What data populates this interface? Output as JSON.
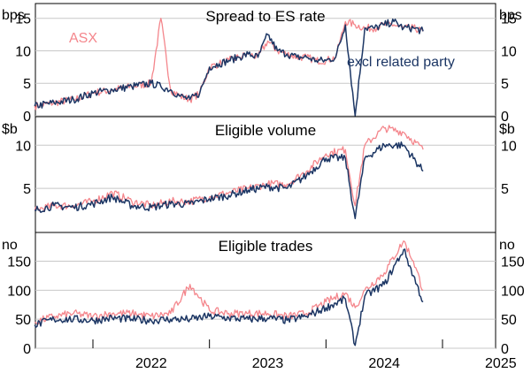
{
  "chart_data": [
    {
      "type": "line",
      "title": "Spread to ES rate",
      "unit_left": "bps",
      "unit_right": "bps",
      "ylim": [
        0,
        17
      ],
      "yticks": [
        0,
        5,
        10,
        15
      ],
      "grid": true,
      "series": [
        {
          "name": "ASX",
          "color": "#f4868c",
          "x": [
            "2021-07",
            "2021-09",
            "2021-11",
            "2022-01",
            "2022-03",
            "2022-05",
            "2022-07",
            "2022-08",
            "2022-09",
            "2022-10",
            "2022-11",
            "2022-12",
            "2023-01",
            "2023-02",
            "2023-03",
            "2023-04",
            "2023-05",
            "2023-06",
            "2023-07",
            "2023-08",
            "2023-09",
            "2023-10",
            "2023-11",
            "2023-12",
            "2024-01",
            "2024-02",
            "2024-03",
            "2024-04",
            "2024-05",
            "2024-06",
            "2024-07",
            "2024-08",
            "2024-09",
            "2024-10",
            "2024-11"
          ],
          "values": [
            1.5,
            2.0,
            2.5,
            3.5,
            4.0,
            4.5,
            5.0,
            15.0,
            4.0,
            3.0,
            2.5,
            3.5,
            7.5,
            8.0,
            8.5,
            9.0,
            9.5,
            9.0,
            11.5,
            10.0,
            9.5,
            9.0,
            9.0,
            8.5,
            8.5,
            9.0,
            14.5,
            14.0,
            13.5,
            13.5,
            14.0,
            14.0,
            13.5,
            13.5,
            13.0
          ]
        },
        {
          "name": "excl related party",
          "color": "#1c3664",
          "x": [
            "2021-07",
            "2021-09",
            "2021-11",
            "2022-01",
            "2022-03",
            "2022-05",
            "2022-07",
            "2022-08",
            "2022-09",
            "2022-10",
            "2022-11",
            "2022-12",
            "2023-01",
            "2023-02",
            "2023-03",
            "2023-04",
            "2023-05",
            "2023-06",
            "2023-07",
            "2023-08",
            "2023-09",
            "2023-10",
            "2023-11",
            "2023-12",
            "2024-01",
            "2024-02",
            "2024-03",
            "2024-04",
            "2024-05",
            "2024-06",
            "2024-07",
            "2024-08",
            "2024-09",
            "2024-10",
            "2024-11"
          ],
          "values": [
            1.5,
            2.0,
            2.5,
            3.5,
            4.0,
            4.5,
            5.0,
            4.5,
            4.0,
            3.0,
            2.5,
            3.5,
            7.5,
            8.0,
            8.5,
            9.0,
            9.5,
            9.0,
            12.5,
            10.0,
            9.5,
            9.0,
            9.0,
            8.5,
            8.5,
            9.0,
            14.0,
            0.0,
            13.5,
            13.5,
            14.0,
            14.5,
            13.5,
            13.5,
            13.0
          ]
        }
      ]
    },
    {
      "type": "line",
      "title": "Eligible volume",
      "unit_left": "$b",
      "unit_right": "$b",
      "ylim": [
        0,
        13
      ],
      "yticks": [
        5,
        10
      ],
      "grid": true,
      "series": [
        {
          "name": "ASX",
          "color": "#f4868c",
          "x": [
            "2021-07",
            "2021-09",
            "2021-11",
            "2022-01",
            "2022-03",
            "2022-05",
            "2022-07",
            "2022-09",
            "2022-11",
            "2023-01",
            "2023-03",
            "2023-05",
            "2023-07",
            "2023-09",
            "2023-11",
            "2024-01",
            "2024-03",
            "2024-04",
            "2024-05",
            "2024-07",
            "2024-09",
            "2024-11"
          ],
          "values": [
            2.5,
            3.0,
            3.0,
            3.5,
            4.5,
            3.5,
            3.0,
            3.5,
            3.5,
            4.0,
            4.5,
            5.0,
            5.5,
            5.5,
            7.0,
            9.0,
            9.5,
            3.0,
            10.0,
            12.0,
            11.5,
            9.5
          ]
        },
        {
          "name": "excl related party",
          "color": "#1c3664",
          "x": [
            "2021-07",
            "2021-09",
            "2021-11",
            "2022-01",
            "2022-03",
            "2022-05",
            "2022-07",
            "2022-09",
            "2022-11",
            "2023-01",
            "2023-03",
            "2023-05",
            "2023-07",
            "2023-09",
            "2023-11",
            "2024-01",
            "2024-03",
            "2024-04",
            "2024-05",
            "2024-07",
            "2024-09",
            "2024-11"
          ],
          "values": [
            2.5,
            3.0,
            2.8,
            3.2,
            4.0,
            3.0,
            2.8,
            3.2,
            3.2,
            3.8,
            4.2,
            4.8,
            5.2,
            5.0,
            6.5,
            8.5,
            8.5,
            1.5,
            8.5,
            10.0,
            10.0,
            7.0
          ]
        }
      ]
    },
    {
      "type": "line",
      "title": "Eligible trades",
      "unit_left": "no",
      "unit_right": "no",
      "ylim": [
        0,
        195
      ],
      "yticks": [
        0,
        50,
        100,
        150
      ],
      "grid": true,
      "series": [
        {
          "name": "ASX",
          "color": "#f4868c",
          "x": [
            "2021-07",
            "2021-09",
            "2021-11",
            "2022-01",
            "2022-03",
            "2022-05",
            "2022-07",
            "2022-09",
            "2022-11",
            "2023-01",
            "2023-03",
            "2023-05",
            "2023-07",
            "2023-09",
            "2023-11",
            "2024-01",
            "2024-03",
            "2024-04",
            "2024-05",
            "2024-07",
            "2024-09",
            "2024-10",
            "2024-11"
          ],
          "values": [
            45,
            55,
            60,
            55,
            60,
            60,
            55,
            60,
            110,
            65,
            60,
            60,
            60,
            55,
            60,
            80,
            95,
            70,
            100,
            130,
            185,
            150,
            100
          ]
        },
        {
          "name": "excl related party",
          "color": "#1c3664",
          "x": [
            "2021-07",
            "2021-09",
            "2021-11",
            "2022-01",
            "2022-03",
            "2022-05",
            "2022-07",
            "2022-09",
            "2022-11",
            "2023-01",
            "2023-03",
            "2023-05",
            "2023-07",
            "2023-09",
            "2023-11",
            "2024-01",
            "2024-03",
            "2024-04",
            "2024-05",
            "2024-07",
            "2024-09",
            "2024-10",
            "2024-11"
          ],
          "values": [
            40,
            50,
            50,
            48,
            52,
            50,
            48,
            50,
            50,
            55,
            52,
            50,
            52,
            48,
            55,
            70,
            85,
            5,
            90,
            110,
            170,
            125,
            80
          ]
        }
      ]
    }
  ],
  "x_axis": {
    "labels": [
      "2022",
      "2023",
      "2024",
      "2025"
    ]
  },
  "legend": {
    "asx": "ASX",
    "excl": "excl related party"
  }
}
